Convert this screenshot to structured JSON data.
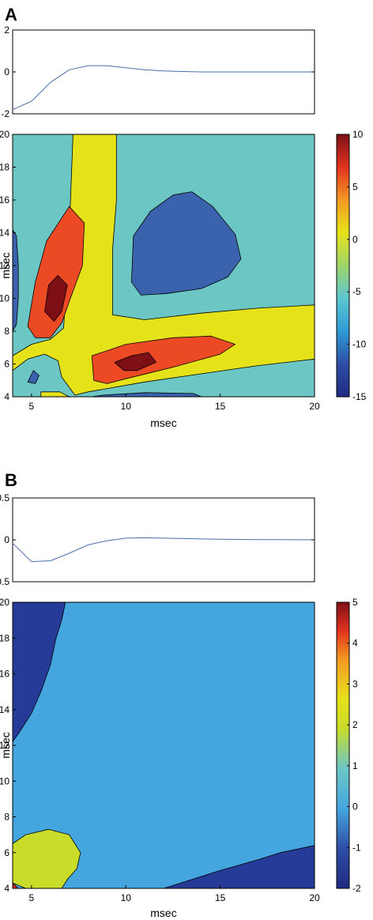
{
  "panels": [
    {
      "label": "A",
      "line_plot": {
        "type": "line",
        "x": [
          4,
          5,
          6,
          7,
          8,
          9,
          10,
          11,
          12,
          13,
          14,
          15,
          16,
          17,
          18,
          19,
          20
        ],
        "y": [
          -1.8,
          -1.4,
          -0.5,
          0.1,
          0.3,
          0.3,
          0.2,
          0.1,
          0.05,
          0.02,
          0.0,
          0.0,
          0.0,
          0.0,
          0.0,
          0.0,
          0.0
        ],
        "xlim": [
          4,
          20
        ],
        "ylim": [
          -2,
          2
        ],
        "yticks": [
          -2,
          0,
          2
        ],
        "line_color": "#4a6fa5"
      },
      "contour": {
        "type": "heatmap",
        "xlim": [
          4,
          20
        ],
        "ylim": [
          4,
          20
        ],
        "xticks": [
          5,
          10,
          15,
          20
        ],
        "yticks": [
          4,
          6,
          8,
          10,
          12,
          14,
          16,
          18,
          20
        ],
        "xlabel": "msec",
        "ylabel": "msec",
        "background_color": "#6cc7c4",
        "regions": [
          {
            "level": 0,
            "color": "#e6e21a",
            "points": [
              [
                4,
                6.5
              ],
              [
                5,
                7.2
              ],
              [
                6,
                7.5
              ],
              [
                6.7,
                8.2
              ],
              [
                6.8,
                10
              ],
              [
                7,
                14
              ],
              [
                7.2,
                20
              ],
              [
                9.5,
                20
              ],
              [
                9.5,
                16
              ],
              [
                9.3,
                13
              ],
              [
                9.3,
                9
              ],
              [
                11,
                8.7
              ],
              [
                14,
                9.1
              ],
              [
                17,
                9.4
              ],
              [
                20,
                9.6
              ],
              [
                20,
                6.3
              ],
              [
                17,
                5.9
              ],
              [
                14,
                5.4
              ],
              [
                11,
                4.9
              ],
              [
                8,
                4.3
              ],
              [
                7.3,
                4.1
              ],
              [
                6.6,
                5.2
              ],
              [
                6.4,
                6.2
              ],
              [
                5.7,
                6.6
              ],
              [
                4.8,
                6.3
              ],
              [
                4,
                5.6
              ]
            ]
          },
          {
            "level": 0,
            "color": "#e6e21a",
            "points": [
              [
                5.5,
                4
              ],
              [
                7,
                4
              ],
              [
                6.5,
                4.3
              ],
              [
                5.5,
                4.3
              ]
            ]
          },
          {
            "level": 5,
            "color": "#ec4a24",
            "points": [
              [
                4.8,
                8.3
              ],
              [
                5.2,
                11
              ],
              [
                5.8,
                13.5
              ],
              [
                7,
                15.6
              ],
              [
                7.8,
                14.6
              ],
              [
                7.7,
                12
              ],
              [
                7,
                9.8
              ],
              [
                6.6,
                8.5
              ],
              [
                6,
                7.6
              ],
              [
                5.2,
                7.6
              ]
            ]
          },
          {
            "level": 5,
            "color": "#ec4a24",
            "points": [
              [
                8.3,
                5
              ],
              [
                8.2,
                6.5
              ],
              [
                10,
                7.2
              ],
              [
                12.5,
                7.6
              ],
              [
                14.5,
                7.7
              ],
              [
                15.8,
                7.2
              ],
              [
                15,
                6.6
              ],
              [
                12.5,
                5.8
              ],
              [
                10,
                5.1
              ],
              [
                9,
                4.8
              ]
            ]
          },
          {
            "level": 10,
            "color": "#7e1015",
            "points": [
              [
                5.7,
                9.2
              ],
              [
                5.9,
                10.8
              ],
              [
                6.4,
                11.4
              ],
              [
                6.9,
                10.8
              ],
              [
                6.6,
                9.2
              ],
              [
                6.2,
                8.6
              ]
            ]
          },
          {
            "level": 10,
            "color": "#7e1015",
            "points": [
              [
                9.4,
                6.1
              ],
              [
                10.3,
                6.5
              ],
              [
                11.2,
                6.7
              ],
              [
                11.6,
                6.1
              ],
              [
                10.6,
                5.6
              ],
              [
                9.9,
                5.6
              ]
            ]
          },
          {
            "level": -10,
            "color": "#3a62ad",
            "points": [
              [
                10.3,
                11
              ],
              [
                10.4,
                13.8
              ],
              [
                11.3,
                15.3
              ],
              [
                12.5,
                16.3
              ],
              [
                13.5,
                16.5
              ],
              [
                14.6,
                15.6
              ],
              [
                15.8,
                13.9
              ],
              [
                16.1,
                12.4
              ],
              [
                15.4,
                11.3
              ],
              [
                14,
                10.6
              ],
              [
                12.2,
                10.3
              ],
              [
                10.8,
                10.2
              ]
            ]
          },
          {
            "level": -10,
            "color": "#3a62ad",
            "points": [
              [
                4,
                14.2
              ],
              [
                4.2,
                13.8
              ],
              [
                4.3,
                12
              ],
              [
                4.3,
                10
              ],
              [
                4.2,
                8.4
              ],
              [
                4,
                8
              ]
            ]
          },
          {
            "level": -10,
            "color": "#3a62ad",
            "points": [
              [
                4.8,
                4.9
              ],
              [
                5.1,
                5.6
              ],
              [
                5.4,
                5.3
              ],
              [
                5.2,
                4.8
              ]
            ]
          },
          {
            "level": -10,
            "color": "#3a62ad",
            "points": [
              [
                8.2,
                4
              ],
              [
                14,
                4
              ],
              [
                13.6,
                4.2
              ],
              [
                11,
                4.25
              ],
              [
                8.8,
                4.1
              ]
            ]
          }
        ]
      },
      "colorbar": {
        "range": [
          -15,
          10
        ],
        "ticks": [
          -15,
          -10,
          -5,
          0,
          5,
          10
        ]
      }
    },
    {
      "label": "B",
      "line_plot": {
        "type": "line",
        "x": [
          4,
          5,
          6,
          7,
          8,
          9,
          10,
          11,
          12,
          13,
          14,
          15,
          16,
          17,
          18,
          19,
          20
        ],
        "y": [
          -0.04,
          -0.26,
          -0.25,
          -0.16,
          -0.06,
          -0.01,
          0.02,
          0.025,
          0.02,
          0.015,
          0.01,
          0.008,
          0.005,
          0.003,
          0.002,
          0.001,
          0.0
        ],
        "xlim": [
          4,
          20
        ],
        "ylim": [
          -0.5,
          0.5
        ],
        "yticks": [
          -0.5,
          0,
          0.5
        ],
        "line_color": "#4a6fa5"
      },
      "contour": {
        "type": "heatmap",
        "xlim": [
          4,
          20
        ],
        "ylim": [
          4,
          20
        ],
        "xticks": [
          5,
          10,
          15,
          20
        ],
        "yticks": [
          4,
          6,
          8,
          10,
          12,
          14,
          16,
          18,
          20
        ],
        "xlabel": "msec",
        "ylabel": "msec",
        "background_color": "#45a6df",
        "regions": [
          {
            "level": -1,
            "color": "#263b97",
            "points": [
              [
                4,
                20
              ],
              [
                6.8,
                20
              ],
              [
                6.6,
                19
              ],
              [
                6.3,
                18
              ],
              [
                6,
                16.5
              ],
              [
                5.5,
                15
              ],
              [
                5,
                13.8
              ],
              [
                4.4,
                12.8
              ],
              [
                4,
                12.2
              ]
            ]
          },
          {
            "level": -1,
            "color": "#263b97",
            "points": [
              [
                12,
                4
              ],
              [
                20,
                4
              ],
              [
                20,
                6.4
              ],
              [
                18.2,
                6
              ],
              [
                17,
                5.6
              ],
              [
                15,
                5
              ],
              [
                13.5,
                4.5
              ]
            ]
          },
          {
            "level": 1.5,
            "color": "#c9dc2a",
            "points": [
              [
                4,
                6.5
              ],
              [
                4.7,
                7
              ],
              [
                5.9,
                7.3
              ],
              [
                7,
                7
              ],
              [
                7.6,
                6
              ],
              [
                7.4,
                5.1
              ],
              [
                6.9,
                4.5
              ],
              [
                6.6,
                4
              ],
              [
                4.7,
                4
              ],
              [
                4,
                4.3
              ]
            ]
          },
          {
            "level": 4,
            "color": "#e0251b",
            "points": [
              [
                4,
                4.3
              ],
              [
                4.3,
                4
              ],
              [
                4,
                4
              ]
            ]
          }
        ]
      },
      "colorbar": {
        "range": [
          -2,
          5
        ],
        "ticks": [
          -2,
          -1,
          0,
          1,
          2,
          3,
          4,
          5
        ]
      }
    }
  ]
}
